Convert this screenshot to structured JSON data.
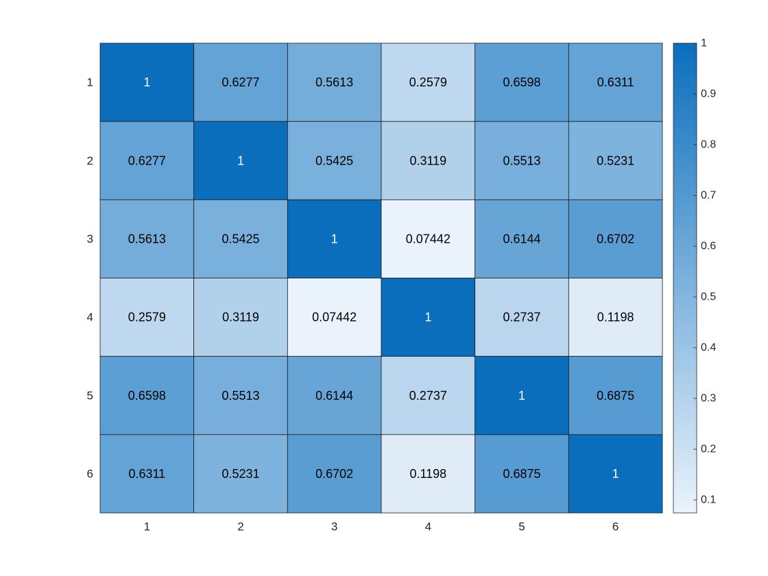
{
  "chart_data": {
    "type": "heatmap",
    "title": "",
    "xlabel": "",
    "ylabel": "",
    "x_categories": [
      "1",
      "2",
      "3",
      "4",
      "5",
      "6"
    ],
    "y_categories": [
      "1",
      "2",
      "3",
      "4",
      "5",
      "6"
    ],
    "values": [
      [
        1,
        0.6277,
        0.5613,
        0.2579,
        0.6598,
        0.6311
      ],
      [
        0.6277,
        1,
        0.5425,
        0.3119,
        0.5513,
        0.5231
      ],
      [
        0.5613,
        0.5425,
        1,
        0.07442,
        0.6144,
        0.6702
      ],
      [
        0.2579,
        0.3119,
        0.07442,
        1,
        0.2737,
        0.1198
      ],
      [
        0.6598,
        0.5513,
        0.6144,
        0.2737,
        1,
        0.6875
      ],
      [
        0.6311,
        0.5231,
        0.6702,
        0.1198,
        0.6875,
        1
      ]
    ],
    "cell_labels": [
      [
        "1",
        "0.6277",
        "0.5613",
        "0.2579",
        "0.6598",
        "0.6311"
      ],
      [
        "0.6277",
        "1",
        "0.5425",
        "0.3119",
        "0.5513",
        "0.5231"
      ],
      [
        "0.5613",
        "0.5425",
        "1",
        "0.07442",
        "0.6144",
        "0.6702"
      ],
      [
        "0.2579",
        "0.3119",
        "0.07442",
        "1",
        "0.2737",
        "0.1198"
      ],
      [
        "0.6598",
        "0.5513",
        "0.6144",
        "0.2737",
        "1",
        "0.6875"
      ],
      [
        "0.6311",
        "0.5231",
        "0.6702",
        "0.1198",
        "0.6875",
        "1"
      ]
    ],
    "colorbar": {
      "range": [
        0.07442,
        1
      ],
      "ticks": [
        0.1,
        0.2,
        0.3,
        0.4,
        0.5,
        0.6,
        0.7,
        0.8,
        0.9,
        1
      ],
      "tick_labels": [
        "0.1",
        "0.2",
        "0.3",
        "0.4",
        "0.5",
        "0.6",
        "0.7",
        "0.8",
        "0.9",
        "1"
      ],
      "placement": "right"
    },
    "colormap": {
      "low": "#eaf3fb",
      "high": "#0a6ebd"
    },
    "grid": true
  }
}
